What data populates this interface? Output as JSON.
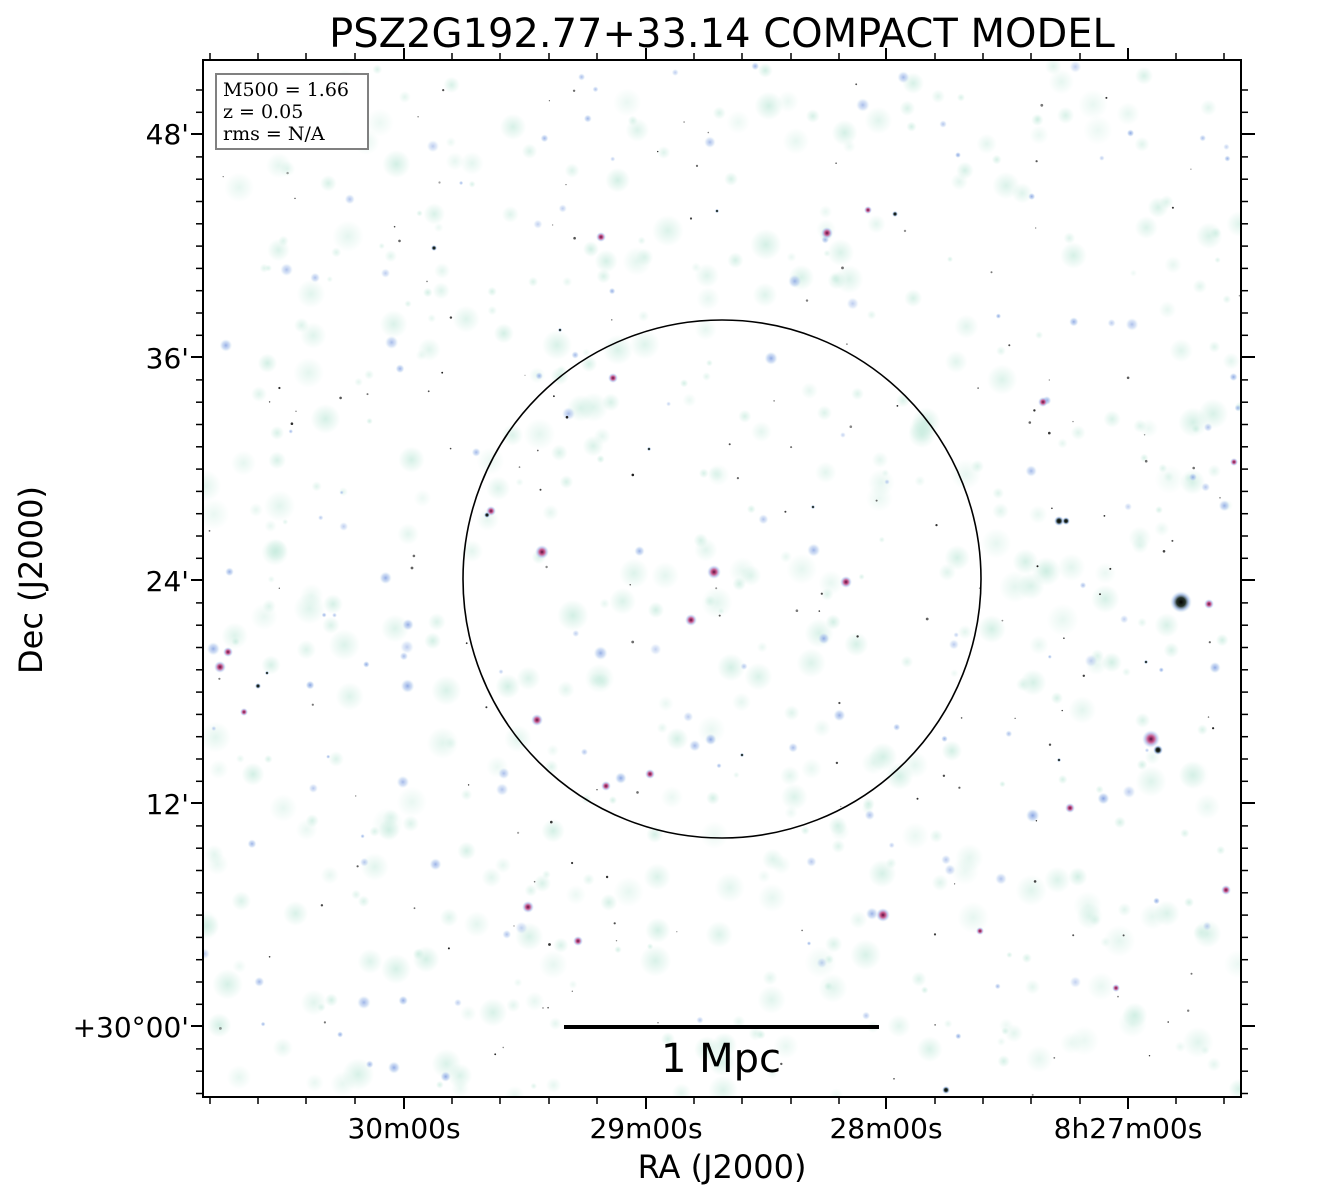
{
  "figure": {
    "title": "PSZ2G192.77+33.14 COMPACT MODEL",
    "x_axis_label": "RA (J2000)",
    "y_axis_label": "Dec (J2000)",
    "x_tick_labels": [
      "30m00s",
      "29m00s",
      "28m00s",
      "8h27m00s"
    ],
    "y_tick_labels": [
      "48'",
      "36'",
      "24'",
      "12'",
      "+30°00'"
    ],
    "info_box": {
      "mass_line": "M500 = 1.66",
      "redshift_line": "z = 0.05",
      "rms_line": "rms = N/A"
    },
    "scale_bar_label": "1 Mpc",
    "colors": {
      "background": "#ffffff",
      "faint_emission": "#cfeee3",
      "medium_emission": "#9bb8e8",
      "bright_emission": "#b0306a",
      "peak_emission": "#000000",
      "aperture_circle": "#000000"
    }
  }
}
